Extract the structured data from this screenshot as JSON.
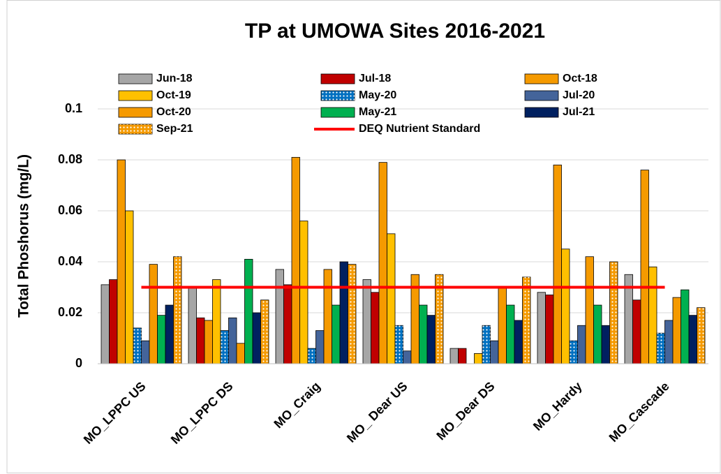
{
  "chart_data": {
    "type": "bar",
    "title": "TP at UMOWA Sites 2016-2021",
    "y_label": "Total Phoshorus (mg/L)",
    "categories": [
      "MO_LPPC US",
      "MO_LPPC DS",
      "MO_Craig",
      "MO_ Dear US",
      "MO_Dear DS",
      "MO_Hardy",
      "MO_Cascade"
    ],
    "series": [
      {
        "name": "Jun-18",
        "color": "#a6a6a6",
        "values": [
          0.031,
          0.03,
          0.037,
          0.033,
          0.006,
          0.028,
          0.035
        ]
      },
      {
        "name": "Jul-18",
        "color": "#c00000",
        "values": [
          0.033,
          0.018,
          0.031,
          0.028,
          0.006,
          0.027,
          0.025
        ]
      },
      {
        "name": "Oct-18",
        "color": "#f59a00",
        "values": [
          0.08,
          0.017,
          0.081,
          0.079,
          null,
          0.078,
          0.076
        ]
      },
      {
        "name": "Oct-19",
        "color": "#ffc000",
        "values": [
          0.06,
          0.033,
          0.056,
          0.051,
          0.004,
          0.045,
          0.038
        ]
      },
      {
        "name": "May-20",
        "color": "#0070c0",
        "pattern": "dots",
        "values": [
          0.014,
          0.013,
          0.006,
          0.015,
          0.015,
          0.009,
          0.012
        ]
      },
      {
        "name": "Jul-20",
        "color": "#44649a",
        "values": [
          0.009,
          0.018,
          0.013,
          0.005,
          0.009,
          0.015,
          0.017
        ]
      },
      {
        "name": "Oct-20",
        "color": "#f59a00",
        "values": [
          0.039,
          0.008,
          0.037,
          0.035,
          0.03,
          0.042,
          0.026
        ]
      },
      {
        "name": "May-21",
        "color": "#00b050",
        "values": [
          0.019,
          0.041,
          0.023,
          0.023,
          0.023,
          0.023,
          0.029
        ]
      },
      {
        "name": "Jul-21",
        "color": "#002060",
        "values": [
          0.023,
          0.02,
          0.04,
          0.019,
          0.017,
          0.015,
          0.019
        ]
      },
      {
        "name": "Sep-21",
        "color": "#f59a00",
        "pattern": "dots",
        "values": [
          0.042,
          0.025,
          0.039,
          0.035,
          0.034,
          0.04,
          0.022
        ]
      },
      {
        "name": "DEQ Nutrient Standard",
        "color": "#ff0000",
        "type": "line",
        "values": [
          0.03,
          0.03,
          0.03,
          0.03,
          0.03,
          0.03,
          0.03
        ]
      }
    ],
    "ylim": [
      0,
      0.1
    ],
    "yticks": [
      0,
      0.02,
      0.04,
      0.06,
      0.08,
      0.1
    ],
    "grid": true
  }
}
